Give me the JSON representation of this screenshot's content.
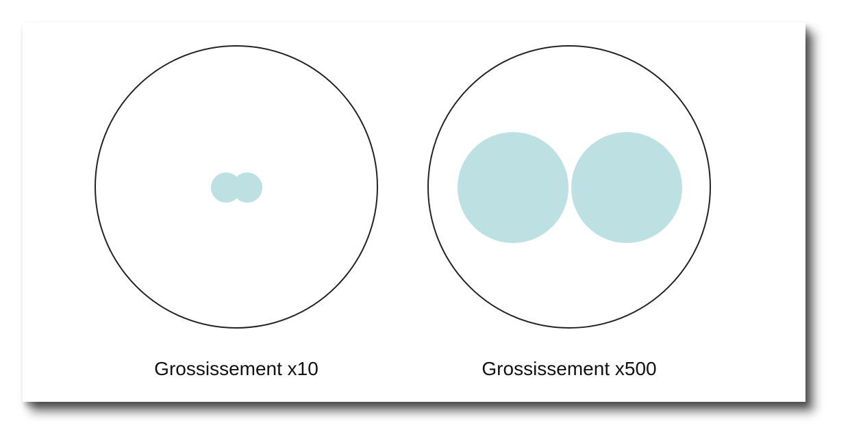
{
  "colors": {
    "outline": "#222222",
    "particle_fill": "#bde0e3",
    "background": "#ffffff"
  },
  "views": [
    {
      "caption": "Grossissement x10",
      "magnification": 10
    },
    {
      "caption": "Grossissement x500",
      "magnification": 500
    }
  ]
}
